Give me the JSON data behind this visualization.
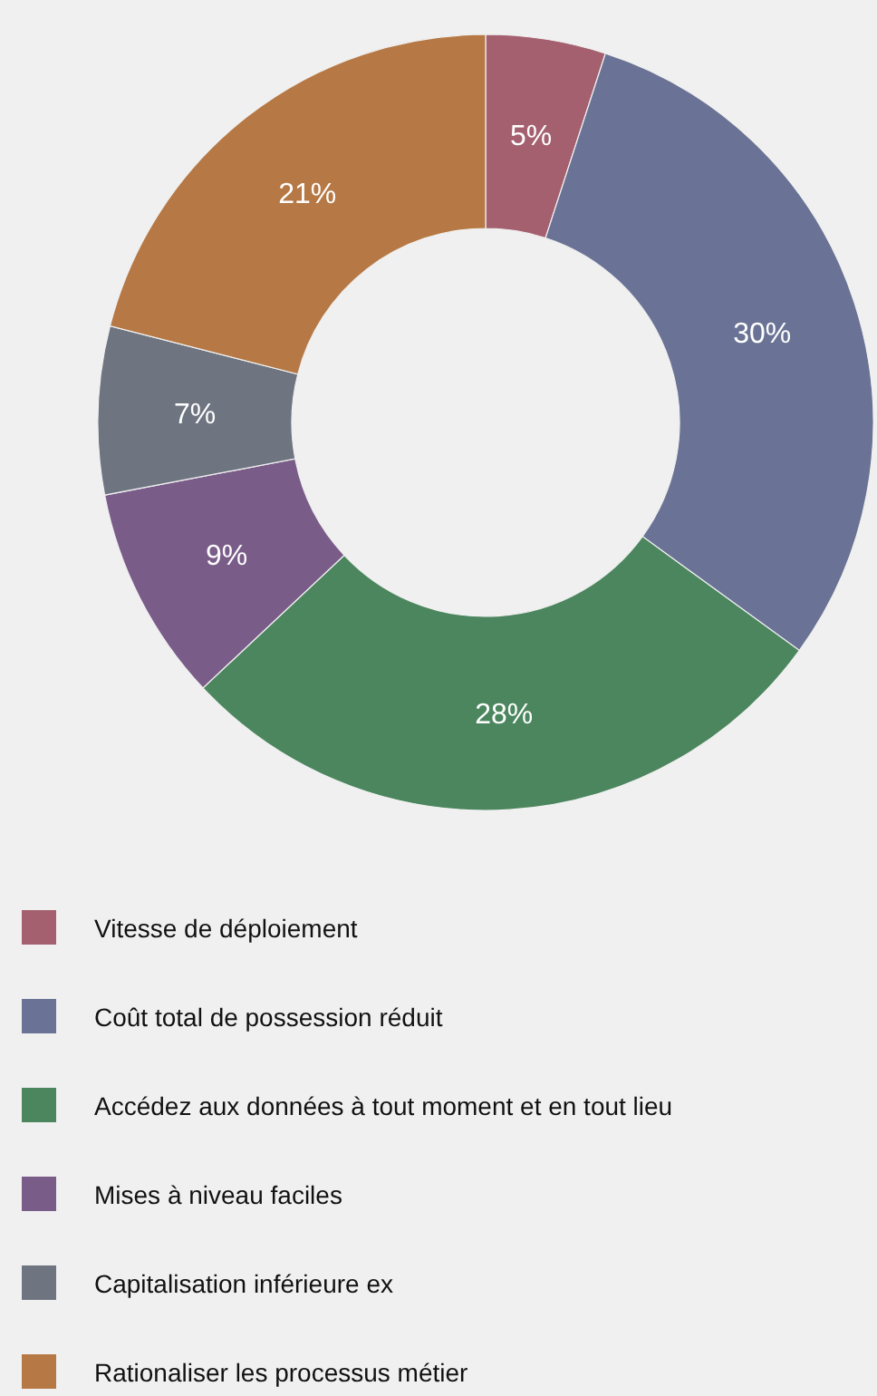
{
  "chart_data": {
    "type": "donut",
    "categories": [
      "Vitesse de déploiement",
      "Coût total de possession réduit",
      "Accédez aux données à tout moment et en tout lieu",
      "Mises à niveau faciles",
      "Capitalisation inférieure ex",
      "Rationaliser les processus métier"
    ],
    "values": [
      5,
      30,
      28,
      9,
      7,
      21
    ],
    "colors": [
      "#a4606f",
      "#6a7395",
      "#4b865e",
      "#7a5c89",
      "#6e7580",
      "#b67844"
    ],
    "value_labels": [
      "5%",
      "30%",
      "28%",
      "9%",
      "7%",
      "21%"
    ],
    "legend": "bottom"
  }
}
